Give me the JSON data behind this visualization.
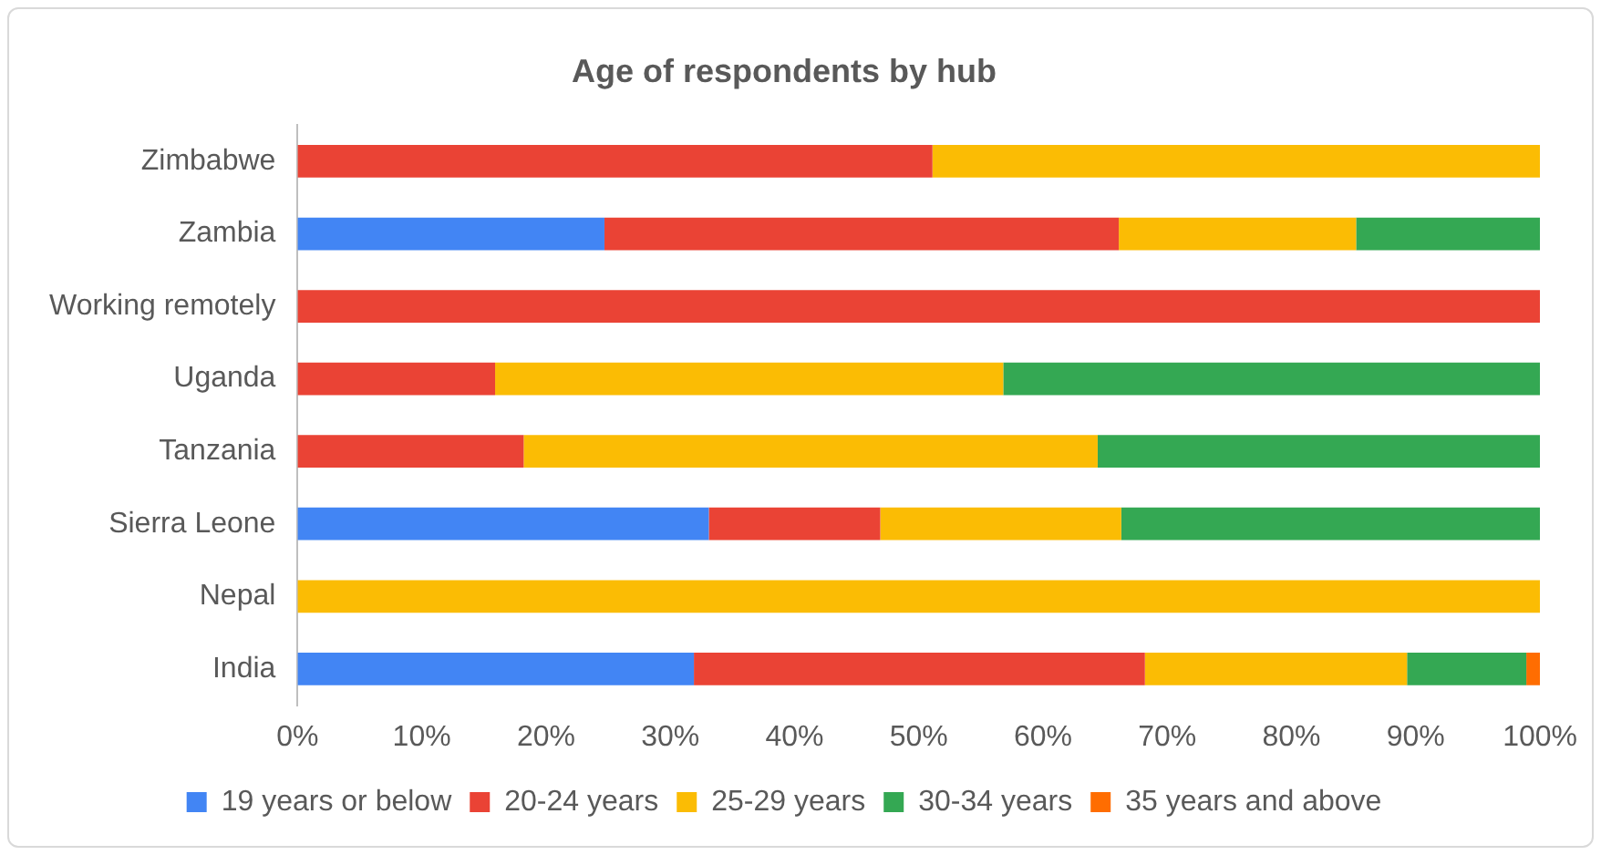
{
  "chart_data": {
    "type": "bar",
    "orientation": "horizontal",
    "stacked": true,
    "title": "Age of respondents by hub",
    "categories": [
      "Zimbabwe",
      "Zambia",
      "Working remotely",
      "Uganda",
      "Tanzania",
      "Sierra Leone",
      "Nepal",
      "India"
    ],
    "series": [
      {
        "name": "19 years or below",
        "color": "#4285f4",
        "values": [
          0,
          24.7,
          0,
          0,
          0,
          33.1,
          0,
          31.9
        ]
      },
      {
        "name": "20-24 years",
        "color": "#ea4335",
        "values": [
          51.1,
          41.4,
          100,
          15.9,
          18.2,
          13.8,
          0,
          36.3
        ]
      },
      {
        "name": "25-29 years",
        "color": "#fbbc04",
        "values": [
          48.9,
          19.1,
          0,
          40.9,
          46.2,
          19.4,
          100,
          21.1
        ]
      },
      {
        "name": "30-34 years",
        "color": "#34a853",
        "values": [
          0,
          14.8,
          0,
          43.2,
          35.6,
          33.7,
          0,
          9.6
        ]
      },
      {
        "name": "35 years and above",
        "color": "#ff6d01",
        "values": [
          0,
          0,
          0,
          0,
          0,
          0,
          0,
          1.1
        ]
      }
    ],
    "xlim": [
      0,
      100
    ],
    "xticks": [
      {
        "value": 0,
        "label": "0%"
      },
      {
        "value": 10,
        "label": "10%"
      },
      {
        "value": 20,
        "label": "20%"
      },
      {
        "value": 30,
        "label": "30%"
      },
      {
        "value": 40,
        "label": "40%"
      },
      {
        "value": 50,
        "label": "50%"
      },
      {
        "value": 60,
        "label": "60%"
      },
      {
        "value": 70,
        "label": "70%"
      },
      {
        "value": 80,
        "label": "80%"
      },
      {
        "value": 90,
        "label": "90%"
      },
      {
        "value": 100,
        "label": "100%"
      }
    ],
    "grid": false,
    "legend": "bottom"
  }
}
